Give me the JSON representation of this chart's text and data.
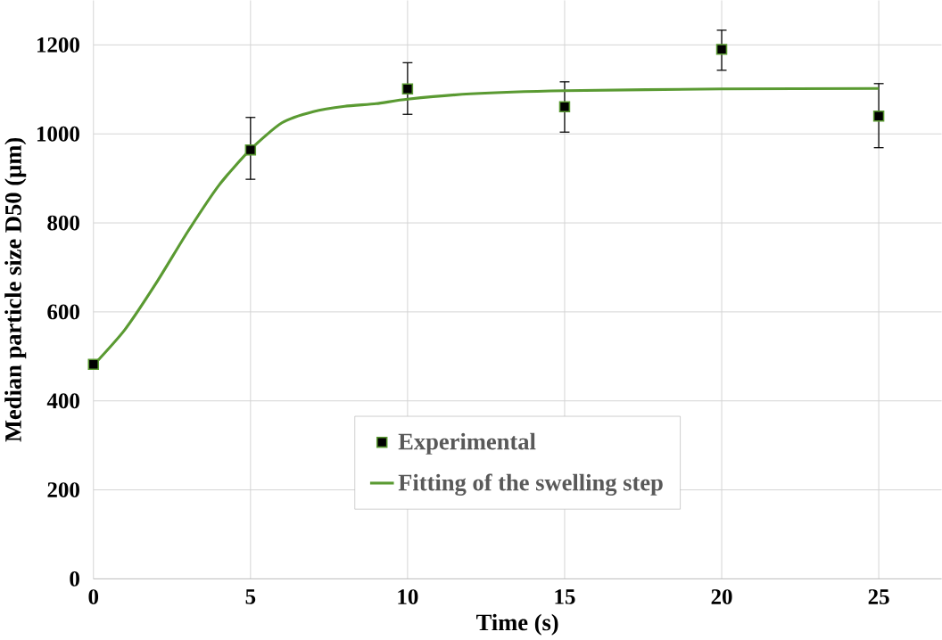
{
  "chart_data": {
    "type": "scatter",
    "xlabel": "Time (s)",
    "ylabel": "Median particle size D50  (µm)",
    "xlim": [
      0,
      27
    ],
    "ylim": [
      0,
      1300
    ],
    "xticks": [
      0,
      5,
      10,
      15,
      20,
      25
    ],
    "yticks": [
      0,
      200,
      400,
      600,
      800,
      1000,
      1200
    ],
    "grid": true,
    "legend": "bottom",
    "series": [
      {
        "name": "Experimental",
        "marker": "square",
        "color": "#000000",
        "x": [
          0,
          5,
          10,
          15,
          20,
          25
        ],
        "values": [
          482,
          964,
          1101,
          1061,
          1190,
          1040
        ],
        "errors": [
          null,
          [
            898,
            1037
          ],
          [
            1044,
            1160
          ],
          [
            1004,
            1117
          ],
          [
            1143,
            1233
          ],
          [
            969,
            1113
          ]
        ]
      },
      {
        "name": "Fitting of the swelling step",
        "type": "line",
        "marker": "none",
        "color": "#5a9a32",
        "x": [
          0,
          1,
          2,
          3,
          4,
          5,
          6,
          7,
          8,
          9,
          10,
          12,
          15,
          20,
          25
        ],
        "values": [
          480,
          560,
          665,
          780,
          885,
          965,
          1025,
          1050,
          1062,
          1068,
          1078,
          1090,
          1097,
          1101,
          1102
        ]
      }
    ]
  }
}
